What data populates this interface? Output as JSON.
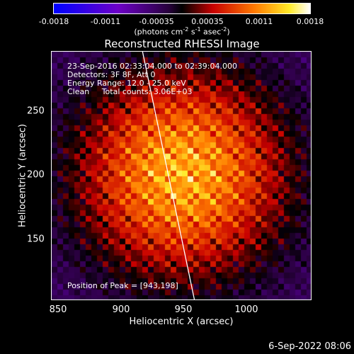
{
  "colorbar": {
    "ticks": [
      "-0.0018",
      "-0.0011",
      "-0.00035",
      "0.00035",
      "0.0011",
      "0.0018"
    ],
    "unit_html": "(photons cm<sup style=\"font-size:8px\">-2</sup> s<sup style=\"font-size:8px\">-1</sup> asec<sup style=\"font-size:8px\">-2</sup>)",
    "range": [
      -0.0018,
      0.0018
    ]
  },
  "info": {
    "time": "23-Sep-2016 02:33:04.000 to 02:39:04.000",
    "detectors": "Detectors: 3F 8F, Att 0",
    "energy": "Energy Range: 12.0 - 25.0 keV",
    "clean": "Clean     Total counts: 3.06E+03",
    "peak": "Position of Peak = [943,198]"
  },
  "timestamp": "6-Sep-2022 08:06",
  "chart_data": {
    "type": "heatmap",
    "title": "Reconstructed RHESSI Image",
    "xlabel": "Heliocentric X (arcsec)",
    "ylabel": "Heliocentric Y (arcsec)",
    "xlim": [
      845,
      1040
    ],
    "ylim": [
      102,
      290
    ],
    "xticks": [
      850,
      900,
      950,
      1000
    ],
    "yticks": [
      150,
      200,
      250
    ],
    "peak": [
      943,
      198
    ],
    "limb_line": [
      [
        913,
        290
      ],
      [
        952,
        102
      ]
    ],
    "colors": {
      "neg": "#0000ff",
      "mid": "#000000",
      "pos": "#ffffff"
    }
  }
}
